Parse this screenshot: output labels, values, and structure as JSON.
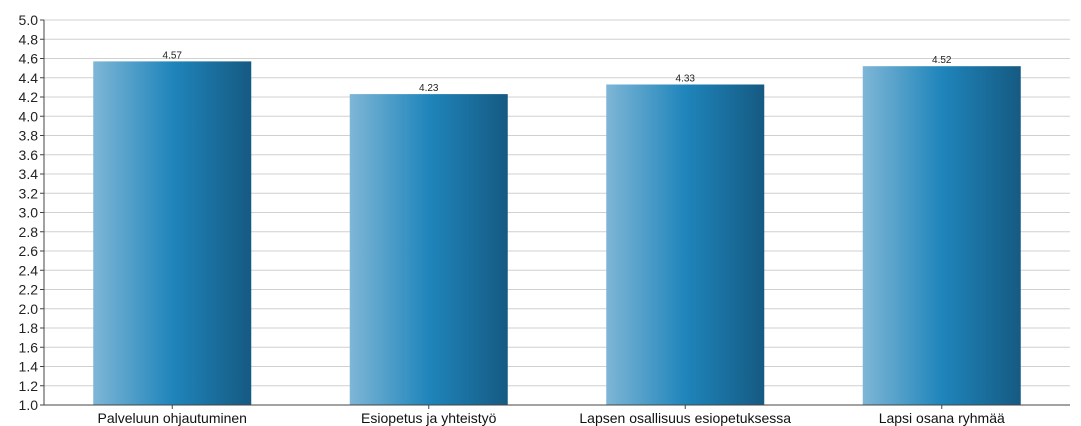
{
  "chart_data": {
    "type": "bar",
    "title": "",
    "xlabel": "",
    "ylabel": "",
    "categories": [
      "Palveluun ohjautuminen",
      "Esiopetus ja yhteistyö",
      "Lapsen osallisuus esiopetuksessa",
      "Lapsi osana ryhmää"
    ],
    "values": [
      4.57,
      4.23,
      4.33,
      4.52
    ],
    "value_labels": [
      "4.57",
      "4.23",
      "4.33",
      "4.52"
    ],
    "ylim": [
      1.0,
      5.0
    ],
    "yticks": [
      "1.0",
      "1.2",
      "1.4",
      "1.6",
      "1.8",
      "2.0",
      "2.2",
      "2.4",
      "2.6",
      "2.8",
      "3.0",
      "3.2",
      "3.4",
      "3.6",
      "3.8",
      "4.0",
      "4.2",
      "4.4",
      "4.6",
      "4.8",
      "5.0"
    ],
    "grid": true,
    "legend": "none",
    "colors": {
      "bar_light": "#7eb6d6",
      "bar_mid": "#1f85bb",
      "bar_dark": "#155a82",
      "grid": "#d0d0d0",
      "axis": "#444444"
    }
  }
}
